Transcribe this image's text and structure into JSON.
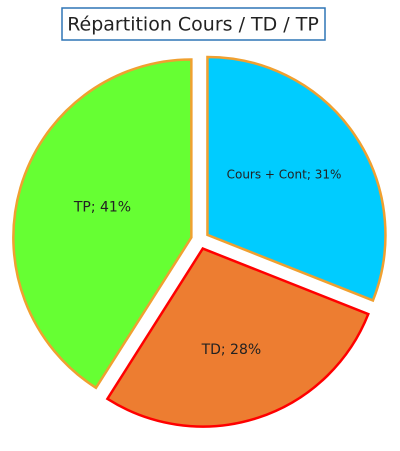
{
  "chart_data": {
    "type": "pie",
    "title": "Répartition Cours / TD / TP",
    "values": [
      31,
      28,
      41
    ],
    "value_labels": [
      "Cours + Cont; 31%",
      "TD; 28%",
      "TP; 41%"
    ],
    "colors": [
      "#00ccff",
      "#ed7d31",
      "#66ff33"
    ],
    "edge_colors": [
      "#f0a030",
      "#ff0000",
      "#f0a030"
    ],
    "exploded": true
  }
}
